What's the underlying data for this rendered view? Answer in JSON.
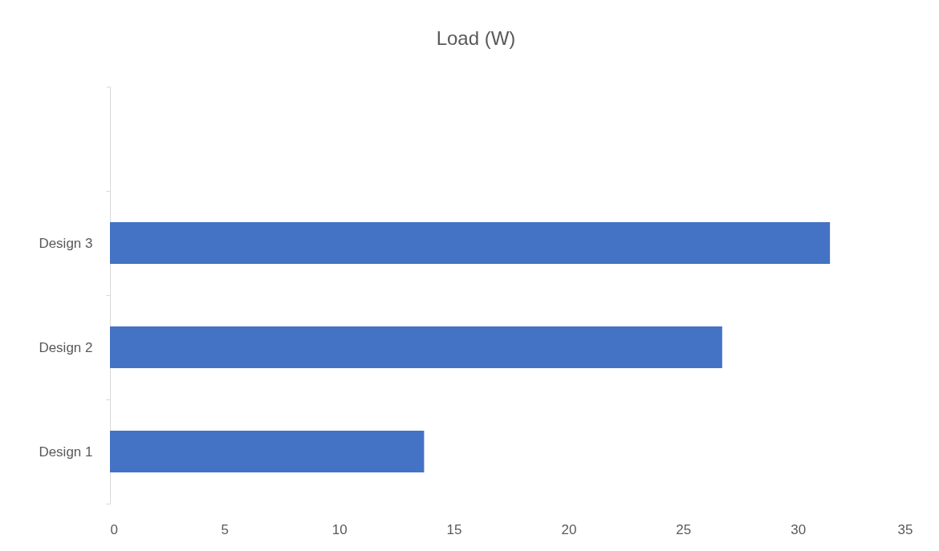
{
  "chart_data": {
    "type": "bar",
    "orientation": "horizontal",
    "title": "Load (W)",
    "categories": [
      null,
      "Design 3",
      "Design 2",
      "Design 1"
    ],
    "values": [
      null,
      31.4,
      26.7,
      13.7
    ],
    "color": "#4472c4",
    "xlim": [
      0,
      35
    ],
    "xticks": [
      0,
      5,
      10,
      15,
      20,
      25,
      30,
      35
    ]
  }
}
